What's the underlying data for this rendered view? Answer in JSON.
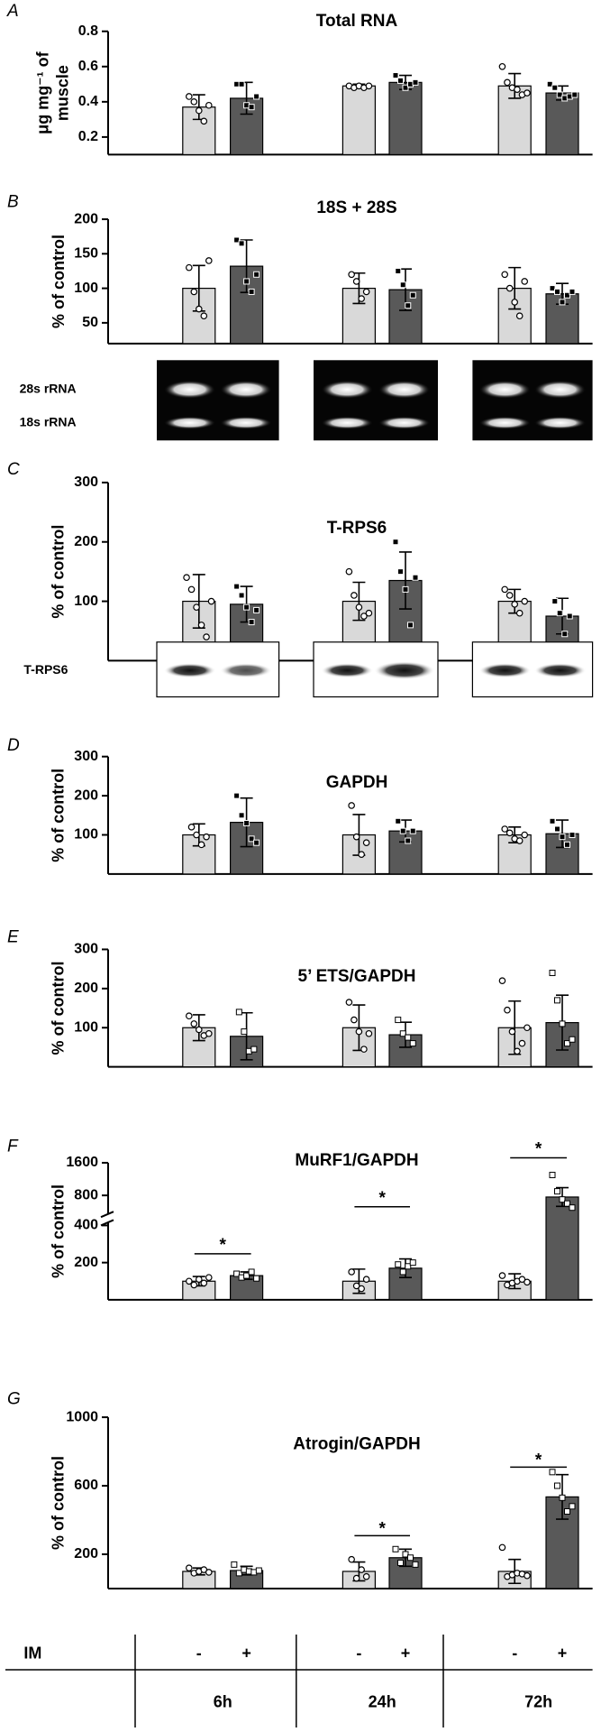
{
  "chart_data": [
    {
      "type": "bar",
      "panel_label": "A",
      "title": "Total RNA",
      "ylabel": [
        "μg mg⁻¹ of",
        "muscle"
      ],
      "ylim": [
        0.1,
        0.8
      ],
      "yticks": [
        0.2,
        0.4,
        0.6,
        0.8
      ],
      "colors": [
        "#d9d9d9",
        "#595959"
      ],
      "values": [
        0.37,
        0.42,
        0.49,
        0.51,
        0.49,
        0.45
      ],
      "errors": [
        0.07,
        0.09,
        0.01,
        0.04,
        0.07,
        0.04
      ],
      "points": [
        [
          0.43,
          0.4,
          0.35,
          0.29,
          0.38
        ],
        [
          0.5,
          0.5,
          0.38,
          0.37,
          0.43
        ],
        [
          0.49,
          0.48,
          0.49,
          0.48,
          0.49
        ],
        [
          0.55,
          0.52,
          0.48,
          0.5,
          0.51
        ],
        [
          0.6,
          0.51,
          0.48,
          0.47,
          0.44,
          0.45
        ],
        [
          0.5,
          0.48,
          0.44,
          0.42,
          0.43,
          0.44
        ]
      ]
    },
    {
      "type": "bar",
      "panel_label": "B",
      "title": "18S + 28S",
      "ylabel": [
        "% of control"
      ],
      "ylim": [
        20,
        200
      ],
      "yticks": [
        50,
        100,
        150,
        200
      ],
      "colors": [
        "#d9d9d9",
        "#595959"
      ],
      "values": [
        100,
        132,
        100,
        98,
        100,
        92
      ],
      "errors": [
        33,
        38,
        22,
        30,
        30,
        15
      ],
      "points": [
        [
          130,
          95,
          70,
          60,
          140
        ],
        [
          170,
          165,
          110,
          95,
          120
        ],
        [
          120,
          110,
          85,
          95
        ],
        [
          125,
          105,
          75,
          90
        ],
        [
          120,
          100,
          80,
          60,
          110
        ],
        [
          100,
          95,
          80,
          90,
          95
        ]
      ]
    },
    {
      "type": "bar",
      "panel_label": "C",
      "title": "T-RPS6",
      "ylabel": [
        "% of control"
      ],
      "ylim": [
        0,
        300
      ],
      "yticks": [
        100,
        200,
        300
      ],
      "colors": [
        "#d9d9d9",
        "#595959"
      ],
      "values": [
        100,
        95,
        100,
        135,
        100,
        75
      ],
      "errors": [
        45,
        30,
        32,
        48,
        20,
        30
      ],
      "points": [
        [
          140,
          120,
          90,
          60,
          40,
          100
        ],
        [
          125,
          110,
          90,
          65,
          85
        ],
        [
          150,
          110,
          90,
          75,
          80
        ],
        [
          200,
          150,
          120,
          60,
          140
        ],
        [
          120,
          110,
          95,
          80,
          100
        ],
        [
          100,
          80,
          45,
          75
        ]
      ]
    },
    {
      "type": "bar",
      "panel_label": "D",
      "title": "GAPDH",
      "ylabel": [
        "% of control"
      ],
      "ylim": [
        0,
        300
      ],
      "yticks": [
        100,
        200,
        300
      ],
      "colors": [
        "#d9d9d9",
        "#595959"
      ],
      "values": [
        100,
        132,
        100,
        110,
        100,
        103
      ],
      "errors": [
        28,
        62,
        52,
        28,
        20,
        35
      ],
      "points": [
        [
          120,
          100,
          75,
          95
        ],
        [
          200,
          150,
          130,
          90,
          80
        ],
        [
          175,
          95,
          50,
          80
        ],
        [
          135,
          110,
          85,
          110
        ],
        [
          115,
          105,
          90,
          85,
          100
        ],
        [
          135,
          115,
          95,
          75,
          100
        ]
      ]
    },
    {
      "type": "bar",
      "panel_label": "E",
      "title": "5’ ETS/GAPDH",
      "ylabel": [
        "% of control"
      ],
      "ylim": [
        0,
        300
      ],
      "yticks": [
        100,
        200,
        300
      ],
      "colors": [
        "#d9d9d9",
        "#595959"
      ],
      "values": [
        100,
        78,
        100,
        82,
        100,
        113
      ],
      "errors": [
        33,
        60,
        58,
        32,
        68,
        70
      ],
      "points": [
        [
          130,
          110,
          95,
          80,
          85
        ],
        [
          140,
          90,
          40,
          45
        ],
        [
          165,
          120,
          90,
          45,
          85
        ],
        [
          120,
          85,
          75,
          60
        ],
        [
          220,
          145,
          90,
          40,
          60,
          100
        ],
        [
          240,
          170,
          110,
          60,
          70
        ]
      ]
    },
    {
      "type": "bar",
      "panel_label": "F",
      "title": "MuRF1/GAPDH",
      "ylabel": [
        "% of control"
      ],
      "ylim": [
        0,
        1600
      ],
      "axis_break": 400,
      "yticks": [
        200,
        400,
        800,
        1600
      ],
      "colors": [
        "#d9d9d9",
        "#595959"
      ],
      "values": [
        100,
        130,
        100,
        170,
        100,
        760
      ],
      "errors": [
        25,
        20,
        65,
        50,
        40,
        230
      ],
      "points": [
        [
          100,
          80,
          110,
          90,
          120
        ],
        [
          140,
          120,
          130,
          150,
          115
        ],
        [
          150,
          75,
          60,
          110
        ],
        [
          190,
          150,
          180,
          200
        ],
        [
          130,
          80,
          90,
          100,
          110,
          95
        ],
        [
          1300,
          900,
          700,
          600,
          500
        ]
      ],
      "annotations": [
        "*",
        "*",
        "*"
      ]
    },
    {
      "type": "bar",
      "panel_label": "G",
      "title": "Atrogin/GAPDH",
      "ylabel": [
        "% of control"
      ],
      "ylim": [
        0,
        1000
      ],
      "yticks": [
        200,
        600,
        1000
      ],
      "colors": [
        "#d9d9d9",
        "#595959"
      ],
      "values": [
        100,
        105,
        100,
        180,
        100,
        535
      ],
      "errors": [
        20,
        25,
        55,
        50,
        70,
        130
      ],
      "points": [
        [
          120,
          90,
          100,
          110,
          95
        ],
        [
          140,
          90,
          110,
          100,
          95,
          105
        ],
        [
          170,
          60,
          110,
          70
        ],
        [
          230,
          150,
          200,
          180,
          140
        ],
        [
          240,
          70,
          80,
          90,
          85,
          75
        ],
        [
          680,
          600,
          530,
          450,
          480
        ]
      ],
      "annotations": [
        "*",
        "*"
      ]
    }
  ],
  "blots": [
    {
      "labels": [
        "28s rRNA",
        "18s rRNA"
      ]
    },
    {
      "labels": [
        "T-RPS6"
      ]
    }
  ],
  "x_axis": {
    "label": "IM",
    "treatment": [
      "-",
      "+",
      "-",
      "+",
      "-",
      "+"
    ],
    "groups": [
      "6h",
      "24h",
      "72h"
    ]
  }
}
